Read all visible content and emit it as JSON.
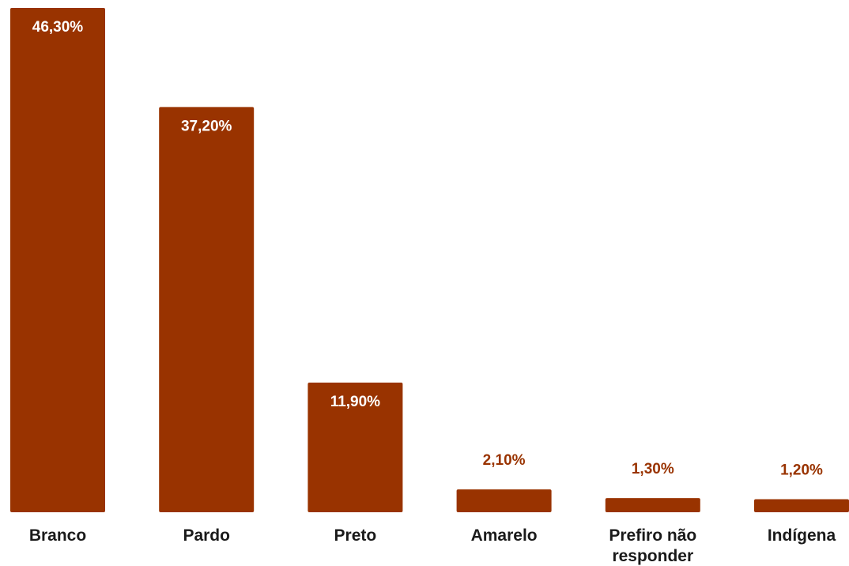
{
  "chart_data": {
    "type": "bar",
    "categories": [
      "Branco",
      "Pardo",
      "Preto",
      "Amarelo",
      "Prefiro não responder",
      "Indígena"
    ],
    "category_lines": [
      [
        "Branco"
      ],
      [
        "Pardo"
      ],
      [
        "Preto"
      ],
      [
        "Amarelo"
      ],
      [
        "Prefiro não",
        "responder"
      ],
      [
        "Indígena"
      ]
    ],
    "values": [
      46.3,
      37.2,
      11.9,
      2.1,
      1.3,
      1.2
    ],
    "data_labels": [
      "46,30%",
      "37,20%",
      "11,90%",
      "2,10%",
      "1,30%",
      "1,20%"
    ],
    "unit": "%",
    "title": "",
    "xlabel": "",
    "ylabel": "",
    "ylim": [
      0,
      46.3
    ],
    "grid": false,
    "legend": "none",
    "bar_color": "#993300",
    "inside_label_color": "#ffffff",
    "outside_label_color": "#993300",
    "tick_label_color": "#1a1a1a"
  }
}
